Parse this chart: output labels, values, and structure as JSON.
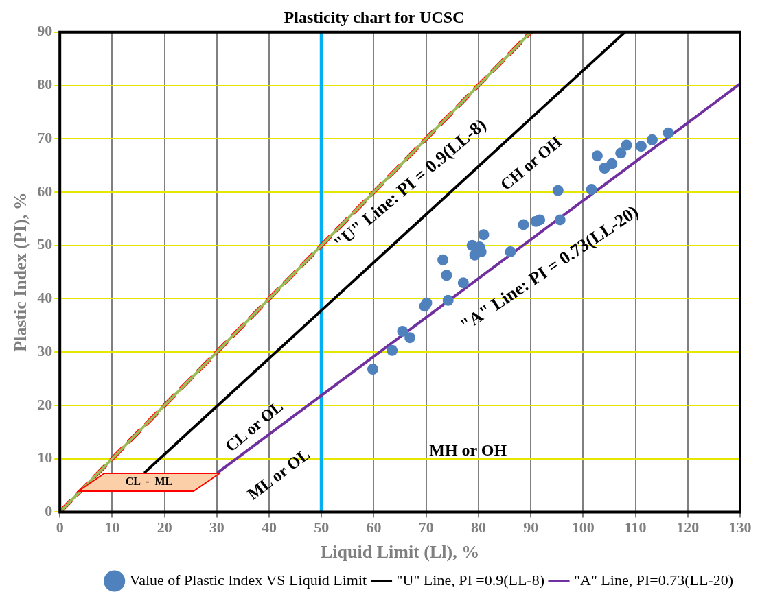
{
  "chart_data": {
    "type": "scatter",
    "title": "Plasticity chart for UCSC",
    "xlabel": "Liquid Limit (Ll), %",
    "ylabel": "Plastic Index (PI), %",
    "xlim": [
      0,
      130
    ],
    "xticks": [
      0,
      10,
      20,
      30,
      40,
      50,
      60,
      70,
      80,
      90,
      100,
      110,
      120,
      130
    ],
    "ylim": [
      0,
      90
    ],
    "yticks": [
      0,
      10,
      20,
      30,
      40,
      50,
      60,
      70,
      80,
      90
    ],
    "grid": true,
    "legend": "bottom right",
    "series": [
      {
        "name": "Value of Plastic Index VS Liquid Limit",
        "type": "scatter",
        "marker": "circle",
        "color": "#4f81bd",
        "x": [
          59.8,
          63.5,
          65.5,
          66.9,
          69.7,
          70.1,
          73.2,
          73.9,
          74.2,
          77.1,
          78.8,
          79.3,
          80.2,
          80.5,
          81.0,
          86.1,
          88.6,
          91.0,
          91.7,
          95.2,
          95.6,
          101.6,
          102.7,
          104.1,
          105.5,
          107.2,
          108.3,
          111.1,
          113.2,
          116.3
        ],
        "values": [
          26.8,
          30.3,
          33.9,
          32.7,
          38.6,
          39.2,
          47.3,
          44.4,
          39.7,
          43.0,
          50.0,
          48.2,
          49.7,
          48.8,
          52.0,
          48.8,
          53.9,
          54.5,
          54.8,
          60.3,
          54.8,
          60.5,
          66.8,
          64.5,
          65.3,
          67.3,
          68.8,
          68.6,
          69.8,
          71.1
        ]
      },
      {
        "type": "line",
        "color": "#9bbb59",
        "x": [
          0,
          90
        ],
        "values": [
          0,
          90
        ],
        "line_style": "solid"
      },
      {
        "type": "line",
        "color": "#ff0000",
        "x": [
          0,
          90
        ],
        "values": [
          0,
          90
        ],
        "line_style": "dashed"
      },
      {
        "name": "\"U\" Line, PI =0.9(LL-8)",
        "type": "line",
        "color": "#000000",
        "x": [
          16.3,
          108
        ],
        "values": [
          7.5,
          90
        ],
        "line_style": "solid"
      },
      {
        "name": "\"A\" Line, PI=0.73(LL-20)",
        "type": "line",
        "color": "#7030a0",
        "x": [
          30.3,
          130
        ],
        "values": [
          7.5,
          80.3
        ],
        "line_style": "solid"
      }
    ],
    "ref_lines": [
      {
        "axis": "x",
        "value": 50,
        "color": "#00b0f0"
      }
    ],
    "annotations": [
      "\"U\" Line: PI = 0.9(LL-8)",
      "\"A\" Line: PI = 0.73(LL-20)",
      "CH or OH",
      "CL or OL",
      "ML or OL",
      "MH or OH",
      "CL  -  ML"
    ]
  }
}
